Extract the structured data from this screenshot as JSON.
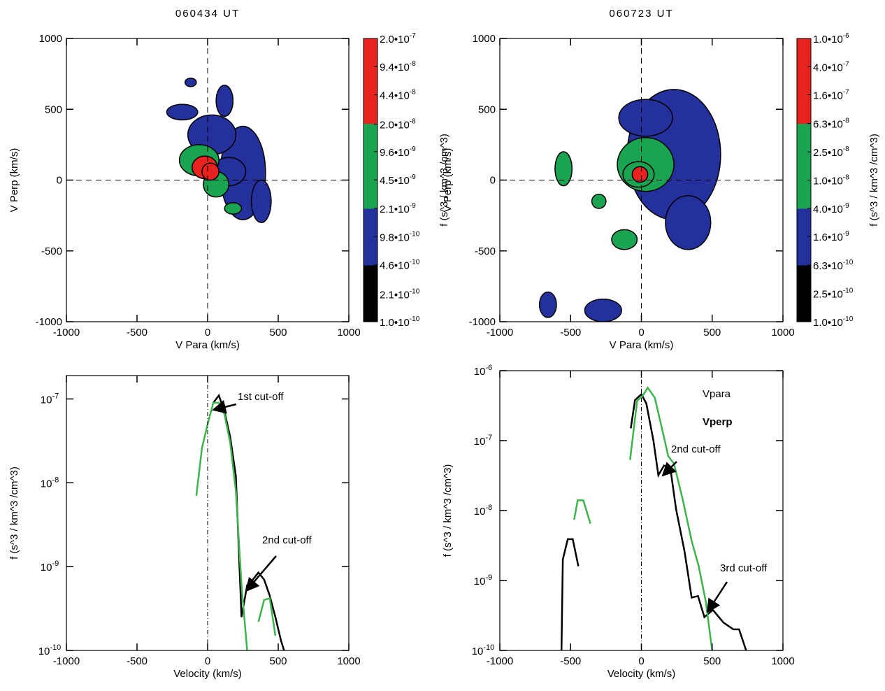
{
  "chart_data": [
    {
      "type": "contour",
      "title": "060434 UT",
      "xlabel": "V Para (km/s)",
      "ylabel": "V Perp (km/s)",
      "xlim": [
        -1000,
        1000
      ],
      "ylim": [
        -1000,
        1000
      ],
      "xticks": [
        -1000,
        -500,
        0,
        500,
        1000
      ],
      "yticks": [
        -1000,
        -500,
        0,
        500,
        1000
      ],
      "colorbar": {
        "label": "f (s^3 / km^3 /cm^3)",
        "log": true,
        "lim": [
          1e-10,
          2e-07
        ],
        "ticks": [
          {
            "value": 1e-10,
            "label": "1.0•10",
            "exp": "-10"
          },
          {
            "value": 2.1e-10,
            "label": "2.1•10",
            "exp": "-10"
          },
          {
            "value": 4.6e-10,
            "label": "4.6•10",
            "exp": "-10"
          },
          {
            "value": 9.8e-10,
            "label": "9.8•10",
            "exp": "-10"
          },
          {
            "value": 2.1e-09,
            "label": "2.1•10",
            "exp": "-9"
          },
          {
            "value": 4.5e-09,
            "label": "4.5•10",
            "exp": "-9"
          },
          {
            "value": 9.6e-09,
            "label": "9.6•10",
            "exp": "-9"
          },
          {
            "value": 2e-08,
            "label": "2.0•10",
            "exp": "-8"
          },
          {
            "value": 4.4e-08,
            "label": "4.4•10",
            "exp": "-8"
          },
          {
            "value": 9.4e-08,
            "label": "9.4•10",
            "exp": "-8"
          },
          {
            "value": 2e-07,
            "label": "2.0•10",
            "exp": "-7"
          }
        ],
        "colors": [
          "#000000",
          "#000000",
          "#24309c",
          "#24309c",
          "#1aa350",
          "#1aa350",
          "#1aa350",
          "#e8231f",
          "#e8231f",
          "#e8231f"
        ]
      },
      "regions": [
        {
          "x": 250,
          "y": 50,
          "rx": 160,
          "ry": 330,
          "value": 7e-10
        },
        {
          "x": 30,
          "y": 320,
          "rx": 170,
          "ry": 140,
          "value": 7e-10
        },
        {
          "x": -180,
          "y": 480,
          "rx": 110,
          "ry": 55,
          "value": 7e-10
        },
        {
          "x": 120,
          "y": 560,
          "rx": 60,
          "ry": 110,
          "value": 7e-10
        },
        {
          "x": -120,
          "y": 690,
          "rx": 40,
          "ry": 30,
          "value": 7e-10
        },
        {
          "x": 380,
          "y": -150,
          "rx": 70,
          "ry": 150,
          "value": 7e-10
        },
        {
          "x": 150,
          "y": 60,
          "rx": 120,
          "ry": 100,
          "value": 1.5e-09
        },
        {
          "x": -60,
          "y": 140,
          "rx": 140,
          "ry": 110,
          "value": 5e-09
        },
        {
          "x": 60,
          "y": -30,
          "rx": 90,
          "ry": 90,
          "value": 5e-09
        },
        {
          "x": 180,
          "y": -200,
          "rx": 60,
          "ry": 40,
          "value": 5e-09
        },
        {
          "x": -20,
          "y": 90,
          "rx": 90,
          "ry": 80,
          "value": 2.5e-08
        },
        {
          "x": 20,
          "y": 60,
          "rx": 60,
          "ry": 60,
          "value": 8e-08
        }
      ]
    },
    {
      "type": "contour",
      "title": "060723 UT",
      "xlabel": "V Para (km/s)",
      "ylabel": "V Perp (km/s)",
      "xlim": [
        -1000,
        1000
      ],
      "ylim": [
        -1000,
        1000
      ],
      "xticks": [
        -1000,
        -500,
        0,
        500,
        1000
      ],
      "yticks": [
        -1000,
        -500,
        0,
        500,
        1000
      ],
      "colorbar": {
        "label": "f (s^3 / km^3 /cm^3)",
        "log": true,
        "lim": [
          1e-10,
          1e-06
        ],
        "ticks": [
          {
            "value": 1e-10,
            "label": "1.0•10",
            "exp": "-10"
          },
          {
            "value": 2.5e-10,
            "label": "2.5•10",
            "exp": "-10"
          },
          {
            "value": 6.3e-10,
            "label": "6.3•10",
            "exp": "-10"
          },
          {
            "value": 1.6e-09,
            "label": "1.6•10",
            "exp": "-9"
          },
          {
            "value": 4e-09,
            "label": "4.0•10",
            "exp": "-9"
          },
          {
            "value": 1e-08,
            "label": "1.0•10",
            "exp": "-8"
          },
          {
            "value": 2.5e-08,
            "label": "2.5•10",
            "exp": "-8"
          },
          {
            "value": 6.3e-08,
            "label": "6.3•10",
            "exp": "-8"
          },
          {
            "value": 1.6e-07,
            "label": "1.6•10",
            "exp": "-7"
          },
          {
            "value": 4e-07,
            "label": "4.0•10",
            "exp": "-7"
          },
          {
            "value": 1e-06,
            "label": "1.0•10",
            "exp": "-6"
          }
        ],
        "colors": [
          "#000000",
          "#000000",
          "#24309c",
          "#24309c",
          "#1aa350",
          "#1aa350",
          "#1aa350",
          "#e8231f",
          "#e8231f",
          "#e8231f"
        ]
      },
      "regions": [
        {
          "x": 230,
          "y": 180,
          "rx": 330,
          "ry": 460,
          "value": 1e-09
        },
        {
          "x": 30,
          "y": 440,
          "rx": 190,
          "ry": 130,
          "value": 1e-09
        },
        {
          "x": 330,
          "y": -300,
          "rx": 160,
          "ry": 190,
          "value": 1e-09
        },
        {
          "x": -660,
          "y": -880,
          "rx": 60,
          "ry": 90,
          "value": 1e-09
        },
        {
          "x": -270,
          "y": -920,
          "rx": 130,
          "ry": 80,
          "value": 1e-09
        },
        {
          "x": -550,
          "y": 80,
          "rx": 60,
          "ry": 120,
          "value": 1.5e-08
        },
        {
          "x": -300,
          "y": -150,
          "rx": 50,
          "ry": 50,
          "value": 1.5e-08
        },
        {
          "x": -120,
          "y": -420,
          "rx": 90,
          "ry": 70,
          "value": 1.5e-08
        },
        {
          "x": 30,
          "y": 110,
          "rx": 200,
          "ry": 190,
          "value": 1.5e-08
        },
        {
          "x": -20,
          "y": 40,
          "rx": 110,
          "ry": 90,
          "value": 4e-08
        },
        {
          "x": -10,
          "y": 40,
          "rx": 55,
          "ry": 55,
          "value": 3e-07
        }
      ]
    },
    {
      "type": "line",
      "xlabel": "Velocity (km/s)",
      "ylabel": "f (s^3 / km^3 /cm^3)",
      "ylog": true,
      "xlim": [
        -1000,
        1000
      ],
      "ylim": [
        1e-10,
        1.9e-07
      ],
      "xticks": [
        -1000,
        -500,
        0,
        500,
        1000
      ],
      "yticks": [
        {
          "value": 1e-10,
          "label": "10",
          "exp": "-10"
        },
        {
          "value": 1e-09,
          "label": "10",
          "exp": "-9"
        },
        {
          "value": 1e-08,
          "label": "10",
          "exp": "-8"
        },
        {
          "value": 1e-07,
          "label": "10",
          "exp": "-7"
        }
      ],
      "series": [
        {
          "color": "#000000",
          "x": [
            40,
            80,
            120,
            160,
            200,
            240,
            280,
            320,
            360,
            400,
            440,
            480,
            520,
            560
          ],
          "values": [
            9e-08,
            1.1e-07,
            7e-08,
            3.5e-08,
            1.2e-08,
            2.5e-10,
            6e-10,
            7e-10,
            8.5e-10,
            7e-10,
            4.5e-10,
            2.5e-10,
            1.3e-10,
            8e-11
          ]
        },
        {
          "color": "#3cb44b",
          "x": [
            -80,
            -40,
            0,
            40,
            80,
            120,
            160,
            200,
            240,
            280,
            320,
            360,
            400,
            440,
            480
          ],
          "values": [
            7e-09,
            2.6e-08,
            5e-08,
            9e-08,
            9e-08,
            6.5e-08,
            3e-08,
            8e-09,
            6e-10,
            1e-10,
            null,
            2.2e-10,
            4e-10,
            4.2e-10,
            1.5e-10
          ]
        }
      ],
      "annotations": [
        {
          "text": "1st cut-off"
        },
        {
          "text": "2nd cut-off"
        }
      ]
    },
    {
      "type": "line",
      "xlabel": "Velocity (km/s)",
      "ylabel": "f (s^3 / km^3 /cm^3)",
      "ylog": true,
      "xlim": [
        -1000,
        1000
      ],
      "ylim": [
        1e-10,
        1e-06
      ],
      "xticks": [
        -1000,
        -500,
        0,
        500,
        1000
      ],
      "yticks": [
        {
          "value": 1e-10,
          "label": "10",
          "exp": "-10"
        },
        {
          "value": 1e-09,
          "label": "10",
          "exp": "-9"
        },
        {
          "value": 1e-08,
          "label": "10",
          "exp": "-8"
        },
        {
          "value": 1e-07,
          "label": "10",
          "exp": "-7"
        },
        {
          "value": 1e-06,
          "label": "10",
          "exp": "-6"
        }
      ],
      "legend": "upper right",
      "series": [
        {
          "name": "Vpara",
          "color": "#000000",
          "x": [
            -565,
            -555,
            -520,
            -485,
            -445,
            -460,
            -75,
            -45,
            0,
            35,
            85,
            120,
            160,
            205,
            245,
            305,
            355,
            400,
            445,
            505,
            580,
            650,
            690,
            740
          ],
          "values": [
            8e-11,
            2e-09,
            3.9e-09,
            3.9e-09,
            1.6e-09,
            null,
            1.5e-07,
            3.8e-07,
            4.6e-07,
            3.4e-07,
            1e-07,
            3.2e-08,
            4.4e-08,
            4e-08,
            1.05e-08,
            2.6e-09,
            5.7e-10,
            6e-10,
            3e-10,
            3.8e-10,
            2.5e-10,
            2e-10,
            2e-10,
            1e-10
          ]
        },
        {
          "name": "Vperp",
          "color": "#3cb44b",
          "x": [
            -475,
            -450,
            -410,
            -360,
            -200,
            -80,
            -30,
            10,
            45,
            95,
            145,
            190,
            230,
            290,
            355,
            405,
            455,
            500
          ],
          "values": [
            7.4e-09,
            1.4e-08,
            1.4e-08,
            6.5e-09,
            null,
            5.3e-08,
            3.7e-07,
            4.4e-07,
            5.7e-07,
            4.1e-07,
            1.5e-07,
            6e-08,
            4.7e-08,
            1.5e-08,
            3.7e-09,
            1.6e-09,
            5e-10,
            1e-10
          ]
        }
      ],
      "annotations": [
        {
          "text": "2nd cut-off"
        },
        {
          "text": "3rd cut-off"
        }
      ]
    }
  ]
}
